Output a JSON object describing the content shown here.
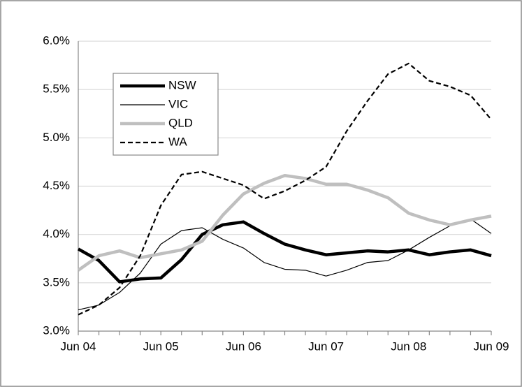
{
  "chart_data": {
    "type": "line",
    "categories": [
      "Jun 04",
      null,
      null,
      null,
      "Jun 05",
      null,
      null,
      null,
      "Jun 06",
      null,
      null,
      null,
      "Jun 07",
      null,
      null,
      null,
      "Jun 08",
      null,
      null,
      null,
      "Jun 09"
    ],
    "series": [
      {
        "name": "NSW",
        "color": "#000000",
        "width": 4.5,
        "dash": false,
        "values": [
          3.85,
          3.73,
          3.51,
          3.54,
          3.55,
          3.74,
          4.0,
          4.1,
          4.13,
          4.01,
          3.9,
          3.84,
          3.79,
          3.81,
          3.83,
          3.82,
          3.84,
          3.79,
          3.82,
          3.84,
          3.78
        ]
      },
      {
        "name": "VIC",
        "color": "#000000",
        "width": 1.2,
        "dash": false,
        "values": [
          3.22,
          3.27,
          3.4,
          3.6,
          3.9,
          4.04,
          4.07,
          3.95,
          3.86,
          3.71,
          3.64,
          3.63,
          3.57,
          3.63,
          3.71,
          3.73,
          3.84,
          3.97,
          4.09,
          4.16,
          4.01
        ]
      },
      {
        "name": "QLD",
        "color": "#bfbfbf",
        "width": 4.5,
        "dash": false,
        "values": [
          3.63,
          3.78,
          3.83,
          3.76,
          3.8,
          3.84,
          3.93,
          4.2,
          4.42,
          4.53,
          4.61,
          4.58,
          4.52,
          4.52,
          4.46,
          4.38,
          4.22,
          4.15,
          4.1,
          4.15,
          4.19
        ]
      },
      {
        "name": "WA",
        "color": "#000000",
        "width": 2.2,
        "dash": true,
        "values": [
          3.17,
          3.27,
          3.45,
          3.78,
          4.3,
          4.62,
          4.65,
          4.58,
          4.51,
          4.37,
          4.45,
          4.56,
          4.7,
          5.07,
          5.38,
          5.66,
          5.77,
          5.59,
          5.53,
          5.44,
          5.19
        ]
      }
    ],
    "ylim": [
      3.0,
      6.0
    ],
    "yticks": [
      {
        "value": 3.0,
        "label": "3.0%"
      },
      {
        "value": 3.5,
        "label": "3.5%"
      },
      {
        "value": 4.0,
        "label": "4.0%"
      },
      {
        "value": 4.5,
        "label": "4.5%"
      },
      {
        "value": 5.0,
        "label": "5.0%"
      },
      {
        "value": 5.5,
        "label": "5.5%"
      },
      {
        "value": 6.0,
        "label": "6.0%"
      }
    ],
    "grid": true,
    "legend": "upper-left"
  }
}
